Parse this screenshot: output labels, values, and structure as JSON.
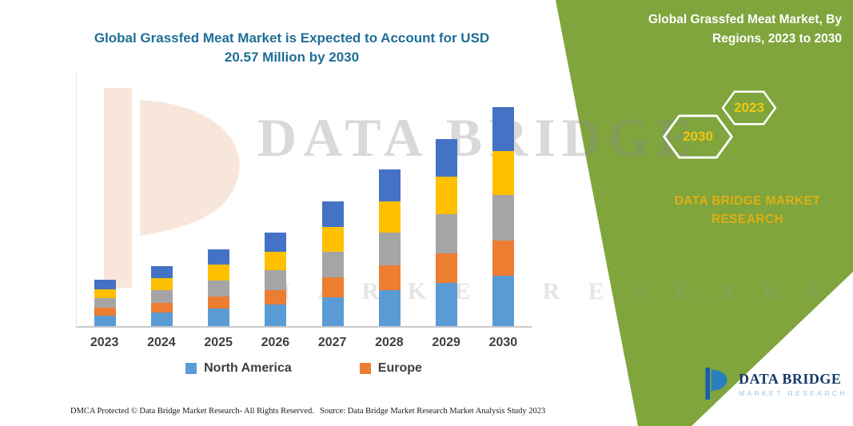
{
  "page": {
    "background": "#FFFFFF",
    "accent_green": "#7FA53C",
    "accent_yellow": "#F2C811",
    "accent_gold": "#DFAE14",
    "title_color": "#1F6E96"
  },
  "chart": {
    "title_line1": "Global Grassfed Meat Market is Expected to Account for USD",
    "title_line2": "20.57 Million by 2030"
  },
  "chart_data": {
    "type": "bar",
    "stacked": true,
    "title": "Global Grassfed Meat Market is Expected to Account for USD 20.57 Million by 2030",
    "units": "USD Million",
    "categories": [
      "2023",
      "2024",
      "2025",
      "2026",
      "2027",
      "2028",
      "2029",
      "2030"
    ],
    "series": [
      {
        "name": "North America",
        "color": "#5B9BD5",
        "values": [
          1.0,
          1.3,
          1.66,
          2.02,
          2.69,
          3.38,
          4.04,
          4.73
        ]
      },
      {
        "name": "Europe",
        "color": "#ED7D31",
        "values": [
          0.7,
          0.9,
          1.15,
          1.4,
          1.87,
          2.35,
          2.81,
          3.29
        ]
      },
      {
        "name": "Unlabeled (gray)",
        "color": "#A5A5A5",
        "values": [
          0.91,
          1.18,
          1.51,
          1.84,
          2.46,
          3.09,
          3.69,
          4.32
        ]
      },
      {
        "name": "Unlabeled (yellow)",
        "color": "#FFC000",
        "values": [
          0.87,
          1.13,
          1.44,
          1.76,
          2.34,
          2.94,
          3.51,
          4.11
        ]
      },
      {
        "name": "Unlabeled (dark blue)",
        "color": "#4472C4",
        "values": [
          0.87,
          1.12,
          1.45,
          1.76,
          2.35,
          2.95,
          3.52,
          4.12
        ]
      }
    ],
    "totals": [
      4.35,
      5.63,
      7.21,
      8.78,
      11.71,
      14.71,
      17.57,
      20.57
    ],
    "legend": [
      "North America",
      "Europe"
    ],
    "legend_position": "bottom",
    "grid": false,
    "ylim": [
      0,
      22
    ],
    "y_axis_labels_visible": false
  },
  "side_panel": {
    "heading_line1": "Global Grassfed Meat Market, By",
    "heading_line2": "Regions, 2023 to 2030",
    "hexagon_back_label": "2030",
    "hexagon_front_label": "2023",
    "brand_line1": "DATA BRIDGE MARKET",
    "brand_line2": "RESEARCH"
  },
  "watermark": {
    "big_text": "DATA BRIDGE",
    "sub_text": "M A R K E T   R E S E A R C H"
  },
  "logo": {
    "name": "DATA BRIDGE",
    "subtitle": "MARKET RESEARCH"
  },
  "footer": {
    "dmca": "DMCA Protected © Data Bridge Market Research-  All Rights Reserved.",
    "source": "Source: Data Bridge Market Research  Market Analysis Study 2023"
  }
}
